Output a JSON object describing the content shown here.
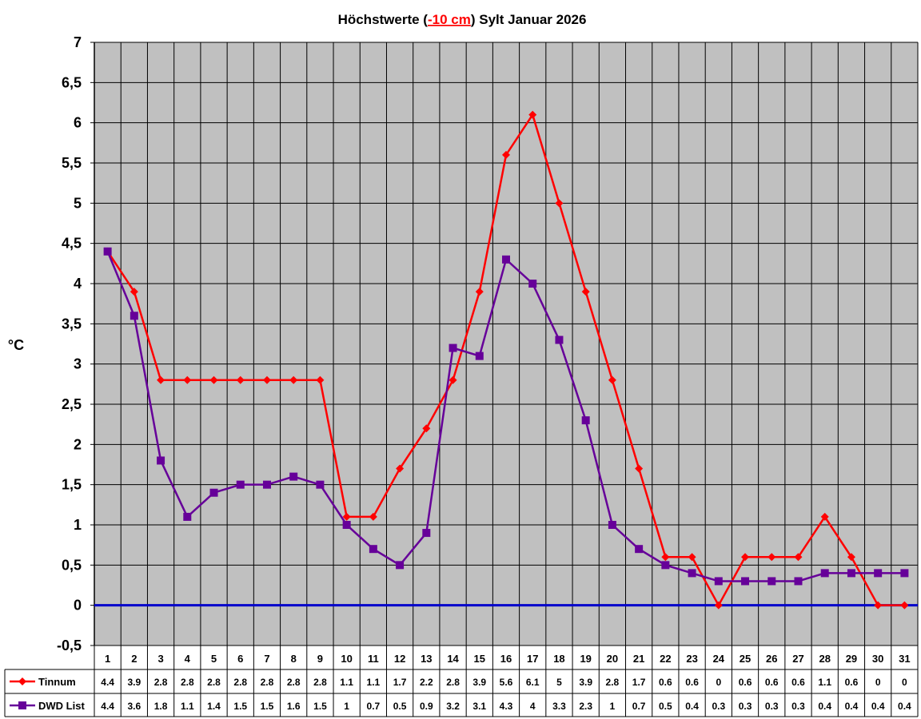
{
  "chart_data": {
    "type": "line",
    "title_prefix": "Höchstwerte (",
    "title_highlight": "-10 cm",
    "title_suffix": ") Sylt Januar 2026",
    "ylabel": "°C",
    "xlabel": "",
    "ylim": [
      -0.5,
      7
    ],
    "ytick_step": 0.5,
    "grid": true,
    "zero_line_color": "#0000cc",
    "plot_background": "#c0c0c0",
    "x": [
      "1",
      "2",
      "3",
      "4",
      "5",
      "6",
      "7",
      "8",
      "9",
      "10",
      "11",
      "12",
      "13",
      "14",
      "15",
      "16",
      "17",
      "18",
      "19",
      "20",
      "21",
      "22",
      "23",
      "24",
      "25",
      "26",
      "27",
      "28",
      "29",
      "30",
      "31"
    ],
    "series": [
      {
        "name": "Tinnum",
        "color": "#ff0000",
        "marker": "diamond",
        "values": [
          4.4,
          3.9,
          2.8,
          2.8,
          2.8,
          2.8,
          2.8,
          2.8,
          2.8,
          1.1,
          1.1,
          1.7,
          2.2,
          2.8,
          3.9,
          5.6,
          6.1,
          5,
          3.9,
          2.8,
          1.7,
          0.6,
          0.6,
          0,
          0.6,
          0.6,
          0.6,
          1.1,
          0.6,
          0,
          0
        ]
      },
      {
        "name": "DWD List",
        "color": "#660099",
        "marker": "square",
        "values": [
          4.4,
          3.6,
          1.8,
          1.1,
          1.4,
          1.5,
          1.5,
          1.6,
          1.5,
          1,
          0.7,
          0.5,
          0.9,
          3.2,
          3.1,
          4.3,
          4,
          3.3,
          2.3,
          1,
          0.7,
          0.5,
          0.4,
          0.3,
          0.3,
          0.3,
          0.3,
          0.4,
          0.4,
          0.4,
          0.4
        ]
      }
    ],
    "data_table": true
  }
}
